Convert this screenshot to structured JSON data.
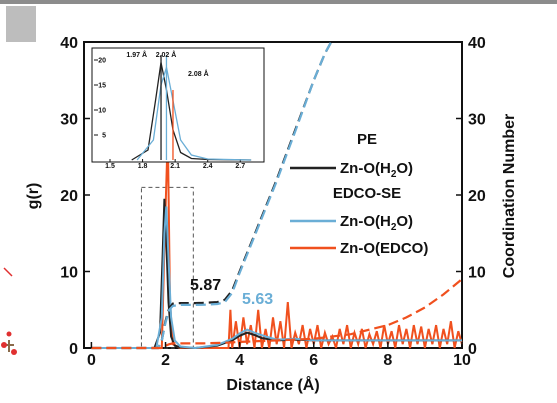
{
  "colors": {
    "pe": "#222222",
    "edco_h2o": "#6aaed6",
    "edco_edco": "#f0501e",
    "frame": "#111111"
  },
  "chart_data": {
    "type": "line",
    "xlabel": "Distance (Å)",
    "ylabel_left": "g(r)",
    "ylabel_right": "Coordination Number",
    "xlim": [
      -0.2,
      10
    ],
    "ylim_left": [
      0,
      40
    ],
    "ylim_right": [
      0,
      40
    ],
    "xticks": [
      "0",
      "2",
      "4",
      "6",
      "8",
      "10"
    ],
    "yticks_left": [
      "0",
      "10",
      "20",
      "30",
      "40"
    ],
    "yticks_right": [
      "0",
      "10",
      "20",
      "30",
      "40"
    ],
    "legend": {
      "placement": "right",
      "groups": [
        {
          "title": "PE",
          "entries": [
            {
              "label": "Zn-O(H2O)",
              "color": "#222222",
              "style": "solid"
            }
          ]
        },
        {
          "title": "EDCO-SE",
          "entries": [
            {
              "label": "Zn-O(H2O)",
              "color": "#6aaed6",
              "style": "solid"
            },
            {
              "label": "Zn-O(EDCO)",
              "color": "#f0501e",
              "style": "solid"
            }
          ]
        }
      ]
    },
    "annotations": [
      {
        "text": "5.87",
        "color": "#111111"
      },
      {
        "text": "5.63",
        "color": "#6aaed6"
      }
    ],
    "series": [
      {
        "name": "Zn-O(H2O) g(r) PE",
        "axis": "left",
        "kind": "rdf",
        "x": [
          0,
          1.7,
          1.85,
          1.92,
          1.97,
          2.02,
          2.08,
          2.15,
          2.25,
          2.4,
          2.8,
          3.4,
          3.8,
          4.0,
          4.2,
          4.4,
          4.6,
          5.0,
          5.5,
          6.0,
          7.0,
          8.0,
          9.0,
          10.0
        ],
        "y": [
          0,
          0,
          2,
          12,
          19.5,
          14,
          6,
          1.5,
          0.3,
          0.1,
          0,
          0.3,
          1.0,
          1.6,
          2.0,
          1.7,
          1.3,
          1.0,
          1.1,
          1.0,
          1.0,
          1.0,
          1.0,
          1.0
        ]
      },
      {
        "name": "Zn-O(H2O) g(r) EDCO-SE",
        "axis": "left",
        "kind": "rdf",
        "x": [
          0,
          1.75,
          1.9,
          1.97,
          2.02,
          2.07,
          2.15,
          2.25,
          2.4,
          2.8,
          3.4,
          3.8,
          4.0,
          4.2,
          4.4,
          4.7,
          5.0,
          5.5,
          6.0,
          7.0,
          8.0,
          9.0,
          10.0
        ],
        "y": [
          0,
          0,
          4,
          15,
          18.5,
          13,
          4,
          1.0,
          0.2,
          0,
          0.4,
          1.2,
          1.9,
          2.4,
          2.0,
          1.5,
          1.1,
          1.2,
          1.0,
          1.0,
          1.0,
          1.0,
          1.0
        ]
      },
      {
        "name": "Zn-O(EDCO) g(r) EDCO-SE",
        "axis": "left",
        "kind": "spiky",
        "x": [
          0,
          1.9,
          1.98,
          2.06,
          2.12,
          2.2,
          2.4,
          2.6,
          3.0,
          3.4,
          3.7,
          3.75,
          3.8,
          3.9,
          4.0,
          4.1,
          4.2,
          4.3,
          4.4,
          4.5,
          4.6,
          4.7,
          4.8,
          4.9,
          5.0,
          5.1,
          5.2,
          5.3,
          5.4,
          5.5,
          5.6,
          5.7,
          5.8,
          5.9,
          6.0,
          6.1,
          6.2,
          6.3,
          6.4,
          6.5,
          6.6,
          6.7,
          6.8,
          6.9,
          7.0,
          7.1,
          7.2,
          7.3,
          7.4,
          7.5,
          7.6,
          7.7,
          7.8,
          7.9,
          8.0,
          8.1,
          8.2,
          8.3,
          8.4,
          8.5,
          8.6,
          8.7,
          8.8,
          8.9,
          9.0,
          9.1,
          9.2,
          9.3,
          9.4,
          9.5,
          9.6,
          9.7,
          9.8,
          9.9,
          10.0
        ],
        "y": [
          0,
          0,
          15,
          28,
          6,
          0.5,
          0,
          0,
          0,
          0,
          0,
          5,
          0,
          3.5,
          0,
          4,
          0.5,
          3,
          0,
          5,
          0,
          2.5,
          0,
          4,
          0.5,
          3.5,
          0,
          6,
          0,
          2,
          0.5,
          3,
          0,
          2.5,
          0.5,
          3,
          0,
          2,
          0.5,
          1.5,
          0,
          2.5,
          0.5,
          3,
          0,
          2,
          0.5,
          2.5,
          0,
          1.8,
          0.5,
          2.2,
          0,
          3,
          0.5,
          2.2,
          0,
          3,
          0.5,
          2.5,
          0,
          3,
          0.5,
          2.8,
          0,
          2.5,
          0.5,
          3,
          0,
          2.5,
          0.5,
          3.5,
          0,
          2.2,
          0.5
        ]
      },
      {
        "name": "Zn-O(H2O) CN PE",
        "axis": "right",
        "kind": "cn",
        "x": [
          0,
          1.8,
          1.9,
          2.0,
          2.1,
          2.2,
          2.4,
          2.6,
          2.8,
          3.0,
          3.2,
          3.4,
          3.6,
          3.8,
          4.0,
          4.5,
          5.0,
          5.5,
          6.0,
          6.3,
          6.5
        ],
        "y": [
          0,
          0,
          1.0,
          3.5,
          5.2,
          5.8,
          5.87,
          5.87,
          5.87,
          5.9,
          5.95,
          6.0,
          6.3,
          7.5,
          10,
          16,
          22,
          28.5,
          35,
          38.5,
          41
        ]
      },
      {
        "name": "Zn-O(H2O) CN EDCO-SE",
        "axis": "right",
        "kind": "cn",
        "x": [
          0,
          1.8,
          1.9,
          2.0,
          2.1,
          2.2,
          2.4,
          2.6,
          2.8,
          3.0,
          3.2,
          3.4,
          3.6,
          3.8,
          4.0,
          4.5,
          5.0,
          5.5,
          6.0,
          6.3,
          6.5
        ],
        "y": [
          0,
          0,
          1.0,
          3.3,
          5.0,
          5.5,
          5.63,
          5.63,
          5.63,
          5.65,
          5.7,
          5.75,
          6.0,
          7.2,
          9.8,
          15.8,
          21.8,
          28.3,
          35,
          38.5,
          41
        ]
      },
      {
        "name": "Zn-O(EDCO) CN EDCO-SE",
        "axis": "right",
        "kind": "cn",
        "x": [
          0,
          1.9,
          2.0,
          2.1,
          2.2,
          2.4,
          3.0,
          3.7,
          4.0,
          5.0,
          6.0,
          7.0,
          8.0,
          8.5,
          9.0,
          9.5,
          10.0
        ],
        "y": [
          0,
          0,
          0.3,
          0.5,
          0.6,
          0.6,
          0.6,
          0.7,
          0.8,
          1.0,
          1.2,
          1.8,
          3.0,
          4.0,
          5.3,
          7.0,
          9.0
        ]
      }
    ],
    "inset": {
      "xlim": [
        1.5,
        2.9
      ],
      "ylim": [
        0,
        22
      ],
      "xticks": [
        "1.5",
        "1.8",
        "2.1",
        "2.4",
        "2.7"
      ],
      "yticks": [
        "5",
        "10",
        "15",
        "20"
      ],
      "peak_labels": [
        {
          "text": "1.97 Å",
          "color": "#111111"
        },
        {
          "text": "2.02 Å",
          "color": "#6aaed6"
        },
        {
          "text": "2.08 Å",
          "color": "#f0501e"
        }
      ]
    }
  }
}
